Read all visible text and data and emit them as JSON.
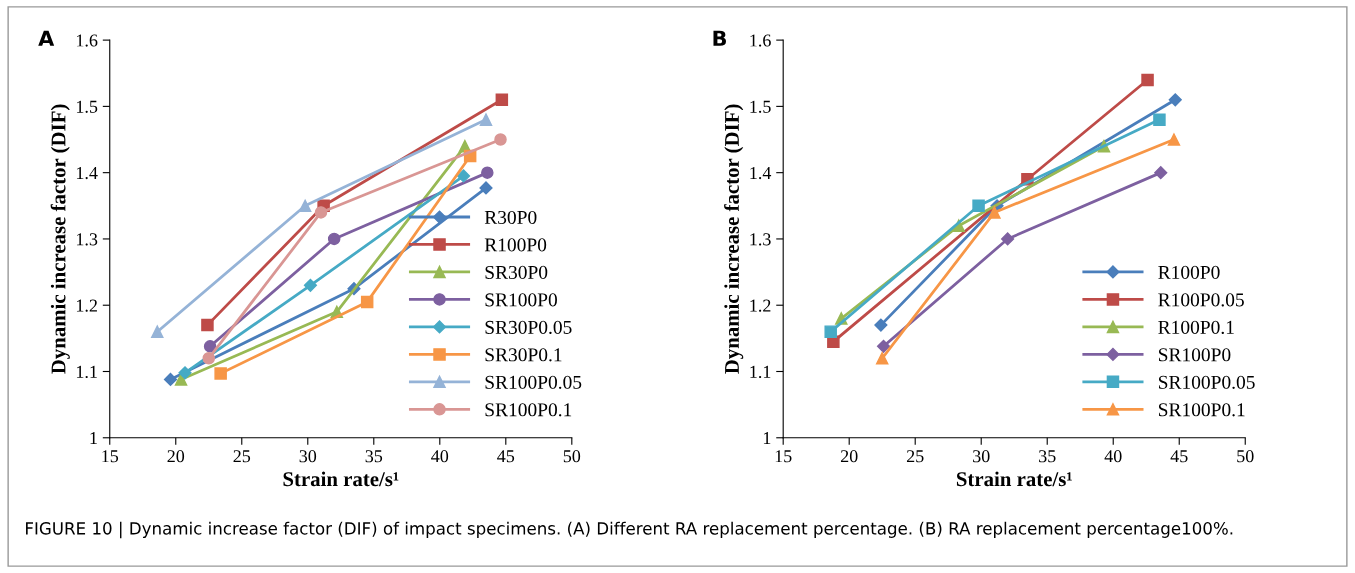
{
  "chart_data": [
    {
      "type": "line",
      "title": "A",
      "xlabel": "Strain rate/s¹",
      "ylabel": "Dynamic increase factor (DIF)",
      "xlim": [
        15,
        50
      ],
      "xticks": [
        15,
        20,
        25,
        30,
        35,
        40,
        45,
        50
      ],
      "ylim": [
        1,
        1.6
      ],
      "yticks": [
        1,
        1.1,
        1.2,
        1.3,
        1.4,
        1.5,
        1.6
      ],
      "grid": false,
      "legend": "bottom right",
      "annotations": [
        "FIGURE 10 | Dynamic increase factor (DIF) of impact specimens. (A) Different RA replacement percentage. (B) RA replacement percentage100%."
      ],
      "series": [
        {
          "name": "R30P0",
          "color": "#4a7ebb",
          "marker": "diamond",
          "x": [
            19.6,
            33.5,
            43.5
          ],
          "values": [
            1.088,
            1.225,
            1.377
          ]
        },
        {
          "name": "R100P0",
          "color": "#be4b48",
          "marker": "square",
          "x": [
            22.4,
            31.2,
            44.7
          ],
          "values": [
            1.17,
            1.35,
            1.51
          ]
        },
        {
          "name": "SR30P0",
          "color": "#98b954",
          "marker": "triangle",
          "x": [
            20.4,
            32.2,
            41.9
          ],
          "values": [
            1.088,
            1.19,
            1.44
          ]
        },
        {
          "name": "SR100P0",
          "color": "#7d60a0",
          "marker": "circle",
          "x": [
            22.6,
            32.0,
            43.6
          ],
          "values": [
            1.138,
            1.3,
            1.4
          ]
        },
        {
          "name": "SR30P0.05",
          "color": "#46aac5",
          "marker": "diamond",
          "x": [
            20.7,
            30.2,
            41.8
          ],
          "values": [
            1.098,
            1.23,
            1.395
          ]
        },
        {
          "name": "SR30P0.1",
          "color": "#f79646",
          "marker": "square",
          "x": [
            23.4,
            34.5,
            42.3
          ],
          "values": [
            1.097,
            1.205,
            1.425
          ]
        },
        {
          "name": "SR100P0.05",
          "color": "#95b3d7",
          "marker": "triangle",
          "x": [
            18.6,
            29.8,
            43.5
          ],
          "values": [
            1.16,
            1.35,
            1.48
          ]
        },
        {
          "name": "SR100P0.1",
          "color": "#d99694",
          "marker": "circle",
          "x": [
            22.5,
            31.0,
            44.6
          ],
          "values": [
            1.12,
            1.34,
            1.45
          ]
        }
      ]
    },
    {
      "type": "line",
      "title": "B",
      "xlabel": "Strain rate/s¹",
      "ylabel": "Dynamic increase factor (DIF)",
      "xlim": [
        15,
        50
      ],
      "xticks": [
        15,
        20,
        25,
        30,
        35,
        40,
        45,
        50
      ],
      "ylim": [
        1,
        1.6
      ],
      "yticks": [
        1,
        1.1,
        1.2,
        1.3,
        1.4,
        1.5,
        1.6
      ],
      "grid": false,
      "legend": "bottom right",
      "series": [
        {
          "name": "R100P0",
          "color": "#4a7ebb",
          "marker": "diamond",
          "x": [
            22.4,
            31.2,
            44.7
          ],
          "values": [
            1.17,
            1.35,
            1.51
          ]
        },
        {
          "name": "R100P0.05",
          "color": "#be4b48",
          "marker": "square",
          "x": [
            18.8,
            33.5,
            42.6
          ],
          "values": [
            1.145,
            1.39,
            1.54
          ]
        },
        {
          "name": "R100P0.1",
          "color": "#98b954",
          "marker": "triangle",
          "x": [
            19.4,
            28.3,
            39.3
          ],
          "values": [
            1.18,
            1.32,
            1.44
          ]
        },
        {
          "name": "SR100P0",
          "color": "#7d60a0",
          "marker": "diamond",
          "x": [
            22.6,
            32.0,
            43.6
          ],
          "values": [
            1.138,
            1.3,
            1.4
          ]
        },
        {
          "name": "SR100P0.05",
          "color": "#46aac5",
          "marker": "square",
          "x": [
            18.6,
            29.8,
            43.5
          ],
          "values": [
            1.16,
            1.35,
            1.48
          ]
        },
        {
          "name": "SR100P0.1",
          "color": "#f79646",
          "marker": "triangle",
          "x": [
            22.5,
            31.0,
            44.6
          ],
          "values": [
            1.12,
            1.34,
            1.45
          ]
        }
      ]
    }
  ]
}
